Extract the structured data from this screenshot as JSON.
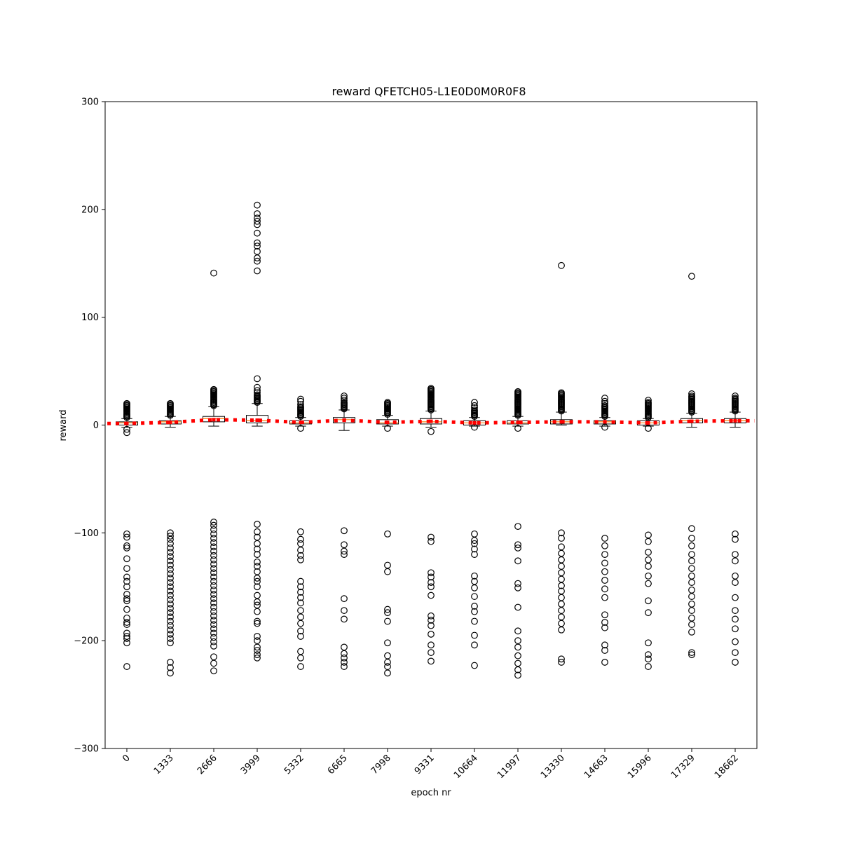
{
  "chart_data": {
    "type": "boxplot",
    "title": "reward QFETCH05-L1E0D0M0R0F8",
    "xlabel": "epoch nr",
    "ylabel": "reward",
    "ylim": [
      -300,
      300
    ],
    "yticks": [
      -300,
      -200,
      -100,
      0,
      100,
      200,
      300
    ],
    "yticklabels": [
      "−300",
      "−200",
      "−100",
      "0",
      "100",
      "200",
      "300"
    ],
    "categories": [
      "0",
      "1333",
      "2666",
      "3999",
      "5332",
      "6665",
      "7998",
      "9331",
      "10664",
      "11997",
      "13330",
      "14663",
      "15996",
      "17329",
      "18662"
    ],
    "grid": false,
    "boxes": [
      {
        "q1": 0,
        "median": 2,
        "q3": 3,
        "whislo": -2,
        "whishi": 6,
        "mean": 1.5,
        "fliers_high": [
          7,
          8,
          9,
          10,
          11,
          12,
          13,
          14,
          15,
          16,
          17,
          18,
          19,
          20
        ],
        "fliers_low": [
          -4,
          -7,
          -101,
          -104,
          -112,
          -114,
          -124,
          -133,
          -141,
          -145,
          -150,
          -157,
          -161,
          -163,
          -171,
          -179,
          -183,
          -185,
          -193,
          -196,
          -198,
          -202,
          -224
        ]
      },
      {
        "q1": 1,
        "median": 3,
        "q3": 4,
        "whislo": -2,
        "whishi": 8,
        "mean": 2.5,
        "fliers_high": [
          9,
          10,
          11,
          12,
          13,
          14,
          15,
          16,
          17,
          18,
          19,
          20
        ],
        "fliers_low": [
          -100,
          -103,
          -106,
          -110,
          -114,
          -118,
          -122,
          -126,
          -130,
          -134,
          -138,
          -142,
          -146,
          -150,
          -154,
          -158,
          -162,
          -166,
          -170,
          -174,
          -178,
          -182,
          -186,
          -190,
          -194,
          -198,
          -202,
          -220,
          -225,
          -230
        ]
      },
      {
        "q1": 3,
        "median": 6,
        "q3": 8,
        "whislo": -1,
        "whishi": 17,
        "mean": 5,
        "fliers_high": [
          18,
          19,
          20,
          21,
          22,
          23,
          24,
          25,
          26,
          27,
          28,
          29,
          30,
          31,
          32,
          33,
          141
        ],
        "fliers_low": [
          -90,
          -93,
          -97,
          -101,
          -105,
          -109,
          -113,
          -117,
          -121,
          -125,
          -129,
          -133,
          -137,
          -141,
          -145,
          -149,
          -153,
          -157,
          -161,
          -165,
          -169,
          -173,
          -177,
          -181,
          -185,
          -189,
          -193,
          -197,
          -201,
          -205,
          -215,
          -221,
          -228
        ]
      },
      {
        "q1": 2,
        "median": 4,
        "q3": 9,
        "whislo": -1,
        "whishi": 20,
        "mean": 4.5,
        "fliers_high": [
          21,
          22,
          23,
          24,
          25,
          26,
          27,
          28,
          30,
          32,
          35,
          43,
          143,
          152,
          155,
          161,
          166,
          169,
          178,
          186,
          189,
          192,
          196,
          204
        ],
        "fliers_low": [
          -92,
          -99,
          -104,
          -110,
          -115,
          -120,
          -127,
          -131,
          -136,
          -142,
          -145,
          -150,
          -158,
          -164,
          -167,
          -173,
          -182,
          -184,
          -196,
          -200,
          -206,
          -209,
          -213,
          -216
        ]
      },
      {
        "q1": 1,
        "median": 2,
        "q3": 4,
        "whislo": -1,
        "whishi": 7,
        "mean": 2.5,
        "fliers_high": [
          8,
          9,
          10,
          11,
          12,
          13,
          14,
          15,
          16,
          17,
          19,
          22,
          24
        ],
        "fliers_low": [
          -3,
          -99,
          -106,
          -110,
          -116,
          -121,
          -125,
          -145,
          -150,
          -155,
          -160,
          -165,
          -172,
          -178,
          -184,
          -191,
          -196,
          -210,
          -216,
          -224
        ]
      },
      {
        "q1": 2,
        "median": 5,
        "q3": 7,
        "whislo": -5,
        "whishi": 14,
        "mean": 4.5,
        "fliers_high": [
          15,
          16,
          17,
          18,
          19,
          20,
          21,
          23,
          25,
          27
        ],
        "fliers_low": [
          -98,
          -111,
          -117,
          -120,
          -161,
          -172,
          -180,
          -206,
          -212,
          -216,
          -220,
          -224
        ]
      },
      {
        "q1": 1,
        "median": 2,
        "q3": 5,
        "whislo": -1,
        "whishi": 9,
        "mean": 2.5,
        "fliers_high": [
          10,
          11,
          12,
          13,
          14,
          15,
          16,
          17,
          18,
          19,
          20,
          21
        ],
        "fliers_low": [
          -3,
          -101,
          -130,
          -136,
          -171,
          -174,
          -182,
          -202,
          -214,
          -220,
          -224,
          -230
        ]
      },
      {
        "q1": 1,
        "median": 3,
        "q3": 6,
        "whislo": -2,
        "whishi": 13,
        "mean": 3.5,
        "fliers_high": [
          14,
          15,
          16,
          17,
          18,
          19,
          20,
          21,
          22,
          23,
          24,
          25,
          26,
          27,
          28,
          29,
          30,
          31,
          32,
          33,
          34
        ],
        "fliers_low": [
          -6,
          -104,
          -108,
          -137,
          -141,
          -146,
          -150,
          -158,
          -177,
          -181,
          -186,
          -194,
          -204,
          -211,
          -219
        ]
      },
      {
        "q1": 0,
        "median": 2,
        "q3": 4,
        "whislo": -1,
        "whishi": 7,
        "mean": 2,
        "fliers_high": [
          8,
          9,
          10,
          11,
          12,
          13,
          14,
          16,
          18,
          21
        ],
        "fliers_low": [
          -2,
          -101,
          -107,
          -110,
          -115,
          -120,
          -140,
          -145,
          -151,
          -159,
          -168,
          -173,
          -182,
          -195,
          -204,
          -223
        ]
      },
      {
        "q1": 1,
        "median": 2,
        "q3": 4,
        "whislo": -1,
        "whishi": 8,
        "mean": 2.5,
        "fliers_high": [
          9,
          10,
          11,
          12,
          13,
          14,
          15,
          16,
          17,
          18,
          19,
          20,
          21,
          22,
          23,
          24,
          25,
          26,
          27,
          28,
          29,
          30,
          31
        ],
        "fliers_low": [
          -3,
          -94,
          -111,
          -114,
          -126,
          -147,
          -151,
          -169,
          -191,
          -200,
          -206,
          -214,
          -221,
          -227,
          -232
        ]
      },
      {
        "q1": 1,
        "median": 3,
        "q3": 5,
        "whislo": 0,
        "whishi": 12,
        "mean": 3,
        "fliers_high": [
          13,
          14,
          15,
          16,
          17,
          18,
          19,
          20,
          21,
          22,
          23,
          24,
          25,
          26,
          27,
          28,
          29,
          30,
          148
        ],
        "fliers_low": [
          -100,
          -105,
          -113,
          -119,
          -125,
          -131,
          -137,
          -143,
          -149,
          -154,
          -160,
          -166,
          -172,
          -178,
          -184,
          -190,
          -217,
          -220
        ]
      },
      {
        "q1": 1,
        "median": 3,
        "q3": 4,
        "whislo": -1,
        "whishi": 7,
        "mean": 3,
        "fliers_high": [
          8,
          9,
          10,
          11,
          12,
          13,
          14,
          15,
          16,
          17,
          18,
          20,
          22,
          25
        ],
        "fliers_low": [
          -2,
          -105,
          -112,
          -120,
          -128,
          -136,
          -144,
          -152,
          -160,
          -176,
          -183,
          -188,
          -204,
          -209,
          -220
        ]
      },
      {
        "q1": 0,
        "median": 2,
        "q3": 4,
        "whislo": -1,
        "whishi": 6,
        "mean": 2,
        "fliers_high": [
          7,
          8,
          9,
          10,
          11,
          12,
          13,
          14,
          15,
          16,
          17,
          18,
          19,
          20,
          21,
          23
        ],
        "fliers_low": [
          -3,
          -102,
          -108,
          -118,
          -125,
          -131,
          -140,
          -147,
          -163,
          -174,
          -202,
          -213,
          -217,
          -224
        ]
      },
      {
        "q1": 2,
        "median": 4,
        "q3": 6,
        "whislo": -2,
        "whishi": 11,
        "mean": 3.5,
        "fliers_high": [
          12,
          13,
          14,
          15,
          16,
          17,
          18,
          19,
          20,
          21,
          22,
          23,
          24,
          25,
          26,
          27,
          29,
          138
        ],
        "fliers_low": [
          -96,
          -105,
          -112,
          -120,
          -126,
          -133,
          -140,
          -146,
          -153,
          -159,
          -166,
          -172,
          -179,
          -185,
          -192,
          -211,
          -213
        ]
      },
      {
        "q1": 2,
        "median": 4,
        "q3": 6,
        "whislo": -2,
        "whishi": 12,
        "mean": 4,
        "fliers_high": [
          13,
          14,
          15,
          16,
          17,
          18,
          19,
          20,
          21,
          22,
          23,
          24,
          25,
          27
        ],
        "fliers_low": [
          -101,
          -106,
          -120,
          -126,
          -140,
          -146,
          -160,
          -172,
          -180,
          -189,
          -201,
          -211,
          -220
        ]
      }
    ]
  }
}
